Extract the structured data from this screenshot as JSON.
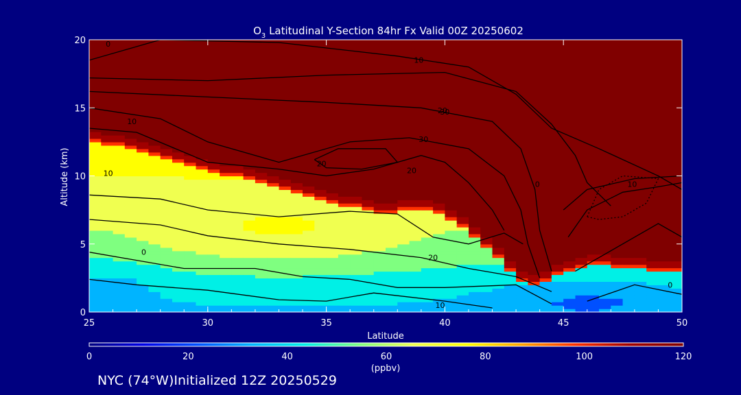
{
  "colors": {
    "background": "#000080",
    "axes": "#ffffff",
    "contour": "#000000",
    "palette": [
      "#000080",
      "#0000e6",
      "#0050ff",
      "#00b4ff",
      "#00f0e6",
      "#7fff80",
      "#f0ff50",
      "#ffff00",
      "#ffa500",
      "#ff3000",
      "#a00000",
      "#800000"
    ]
  },
  "chart_data": {
    "type": "heatmap",
    "title_prefix": "O",
    "title_subscript": "3",
    "title_rest": " Latitudinal Y-Section 84hr  Fx Valid 00Z 20250602",
    "xlabel": "Latitude",
    "ylabel": "Altitude (km)",
    "xlim": [
      25,
      50
    ],
    "ylim": [
      0,
      20
    ],
    "xticks": [
      "25",
      "30",
      "35",
      "40",
      "45",
      "50"
    ],
    "yticks": [
      "0",
      "5",
      "10",
      "15",
      "20"
    ],
    "x": [
      25,
      26,
      27,
      28,
      29,
      30,
      31,
      32,
      33,
      34,
      35,
      36,
      37,
      38,
      39,
      40,
      41,
      42,
      43,
      44,
      45,
      46,
      47,
      48,
      49,
      50
    ],
    "y": [
      0,
      1,
      2,
      3,
      4,
      5,
      6,
      7,
      8,
      9,
      10,
      11,
      12,
      13,
      14,
      15,
      16,
      17,
      18,
      19,
      20
    ],
    "colorbar": {
      "label": "(ppbv)",
      "ticks": [
        "0",
        "20",
        "40",
        "60",
        "80",
        "100",
        "120"
      ],
      "range": [
        0,
        120
      ]
    },
    "contour_labels": [
      "0",
      "10",
      "20",
      "30",
      "20",
      "10",
      "0",
      "10",
      "20",
      "30",
      "20",
      "10",
      "0",
      "10",
      "0"
    ],
    "footer": "NYC (74°W)Initialized 12Z 20250529"
  }
}
